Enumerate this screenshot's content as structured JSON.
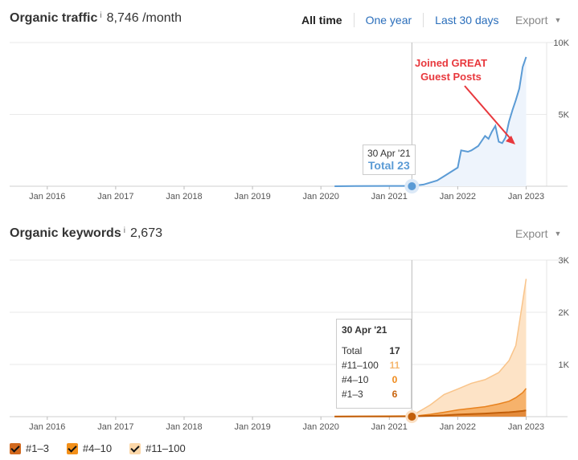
{
  "traffic": {
    "title": "Organic traffic",
    "info": "i",
    "value": "8,746 /month",
    "ranges": [
      "All time",
      "One year",
      "Last 30 days"
    ],
    "export_label": "Export",
    "tooltip": {
      "date": "30 Apr '21",
      "label": "Total 23"
    },
    "annotation": [
      "Joined GREAT",
      "Guest Posts"
    ]
  },
  "keywords": {
    "title": "Organic keywords",
    "info": "i",
    "value": "2,673",
    "export_label": "Export",
    "tooltip": {
      "date": "30 Apr '21",
      "rows": [
        {
          "label": "Total",
          "value": "17"
        },
        {
          "label": "#11–100",
          "value": "11"
        },
        {
          "label": "#4–10",
          "value": "0"
        },
        {
          "label": "#1–3",
          "value": "6"
        }
      ]
    }
  },
  "legend": [
    {
      "label": "#1–3"
    },
    {
      "label": "#4–10"
    },
    {
      "label": "#11–100"
    }
  ],
  "colors": {
    "traffic_line": "#5b9bd5",
    "traffic_fill": "#eef4fc",
    "kw_11_100": "#f9c48a",
    "kw_11_100_fill": "#fde3c6",
    "kw_4_10": "#e8821e",
    "kw_1_3": "#c25f0a",
    "annotation": "#e8383d",
    "legend_1_3": "#d2691e",
    "legend_4_10": "#f39019",
    "legend_11_100": "#fcd7a8"
  },
  "chart_data": [
    {
      "type": "area",
      "title": "Organic traffic",
      "x_ticks": [
        "Jan 2016",
        "Jan 2017",
        "Jan 2018",
        "Jan 2019",
        "Jan 2020",
        "Jan 2021",
        "Jan 2022",
        "Jan 2023"
      ],
      "y_ticks": [
        "5K",
        "10K"
      ],
      "ylim": [
        0,
        10000
      ],
      "series": [
        {
          "x": [
            2020.2,
            2020.5,
            2021.0,
            2021.33,
            2021.5,
            2021.7,
            2021.8,
            2021.9,
            2022.0,
            2022.05,
            2022.15,
            2022.2,
            2022.3,
            2022.4,
            2022.45,
            2022.5,
            2022.55,
            2022.6,
            2022.65,
            2022.7,
            2022.75,
            2022.8,
            2022.85,
            2022.9,
            2022.95,
            2023.0
          ],
          "values": [
            0,
            10,
            20,
            23,
            120,
            400,
            700,
            1000,
            1300,
            2500,
            2400,
            2500,
            2800,
            3500,
            3300,
            3800,
            4200,
            3100,
            3000,
            3400,
            4500,
            5300,
            6000,
            6800,
            8300,
            9000
          ]
        }
      ],
      "grid": true
    },
    {
      "type": "area",
      "title": "Organic keywords",
      "x_ticks": [
        "Jan 2016",
        "Jan 2017",
        "Jan 2018",
        "Jan 2019",
        "Jan 2020",
        "Jan 2021",
        "Jan 2022",
        "Jan 2023"
      ],
      "y_ticks": [
        "1K",
        "2K",
        "3K"
      ],
      "ylim": [
        0,
        3000
      ],
      "x": [
        2020.2,
        2020.6,
        2021.0,
        2021.33,
        2021.6,
        2021.8,
        2022.0,
        2022.2,
        2022.4,
        2022.6,
        2022.75,
        2022.85,
        2022.95,
        2023.0
      ],
      "series": [
        {
          "name": "#1–3",
          "values": [
            2,
            4,
            5,
            6,
            15,
            25,
            40,
            50,
            60,
            75,
            85,
            95,
            110,
            120
          ]
        },
        {
          "name": "#4–10",
          "values": [
            0,
            0,
            0,
            0,
            30,
            60,
            90,
            110,
            130,
            170,
            210,
            270,
            350,
            420
          ]
        },
        {
          "name": "#11–100",
          "values": [
            5,
            8,
            10,
            11,
            180,
            340,
            400,
            480,
            520,
            600,
            780,
            1000,
            1750,
            2100
          ]
        }
      ],
      "grid": true
    }
  ]
}
